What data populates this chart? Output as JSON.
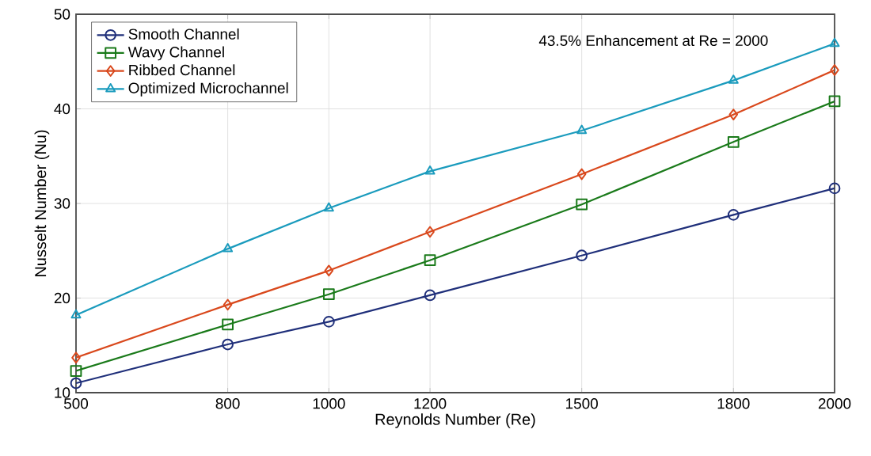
{
  "chart_data": {
    "type": "line",
    "xlabel": "Reynolds Number (Re)",
    "ylabel": "Nusselt Number (Nu)",
    "x": [
      500,
      800,
      1000,
      1200,
      1500,
      1800,
      2000
    ],
    "series": [
      {
        "name": "Smooth Channel",
        "color": "#1f2f7a",
        "marker": "circle",
        "values": [
          11.0,
          15.1,
          17.5,
          20.3,
          24.5,
          28.8,
          31.6
        ]
      },
      {
        "name": "Wavy Channel",
        "color": "#1a7a1a",
        "marker": "square",
        "values": [
          12.3,
          17.2,
          20.4,
          24.0,
          29.9,
          36.5,
          40.8
        ]
      },
      {
        "name": "Ribbed Channel",
        "color": "#d9481c",
        "marker": "diamond",
        "values": [
          13.7,
          19.3,
          22.9,
          27.0,
          33.1,
          39.4,
          44.1
        ]
      },
      {
        "name": "Optimized Microchannel",
        "color": "#1a9bbd",
        "marker": "triangle",
        "values": [
          18.2,
          25.2,
          29.5,
          33.4,
          37.7,
          43.0,
          46.9
        ]
      }
    ],
    "xlim": [
      500,
      2000
    ],
    "ylim": [
      10,
      50
    ],
    "xticks": [
      500,
      800,
      1000,
      1200,
      1500,
      1800,
      2000
    ],
    "yticks": [
      10,
      20,
      30,
      40,
      50
    ],
    "grid": true,
    "legend": "top left",
    "line_style": "solid",
    "annotations": [
      "43.5% Enhancement at Re = 2000"
    ]
  }
}
